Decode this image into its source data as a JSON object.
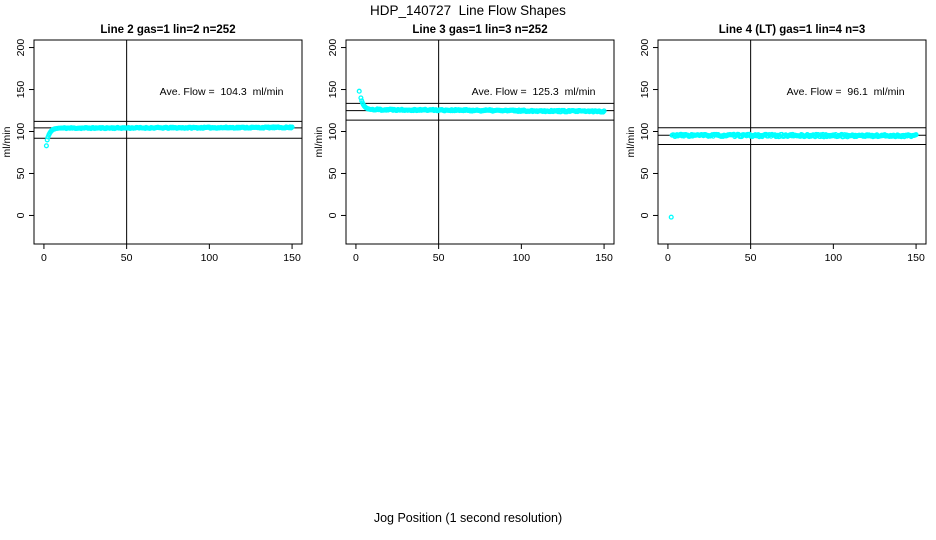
{
  "page": {
    "title": "HDP_140727  Line Flow Shapes",
    "xlabel": "Jog Position (1 second resolution)"
  },
  "colors": {
    "points": "#00ffff",
    "axis": "#000000",
    "background": "#ffffff"
  },
  "chart_data": [
    {
      "type": "scatter",
      "title": "Line 2 gas=1 lin=2 n=252",
      "annotation": "Ave. Flow =  104.3  ml/min",
      "ave_flow_ml_min": 104.3,
      "n": 252,
      "ylabel": "ml/min",
      "xlim": [
        -6,
        156
      ],
      "ylim": [
        -34,
        209
      ],
      "xticks": [
        0,
        50,
        100,
        150
      ],
      "yticks": [
        0,
        50,
        100,
        150,
        200
      ],
      "vline_x": 50,
      "hline_upper": 112,
      "hline_lower": 92,
      "hline_mid": 104.3,
      "lead_points": [
        [
          1.5,
          83
        ],
        [
          2,
          90
        ],
        [
          2.5,
          93.5
        ],
        [
          3,
          96
        ],
        [
          3.5,
          98
        ],
        [
          4,
          99.5
        ],
        [
          4.5,
          100.7
        ],
        [
          5,
          101.6
        ],
        [
          5.5,
          102.3
        ],
        [
          6,
          102.8
        ],
        [
          6.5,
          103.1
        ],
        [
          7,
          103.4
        ],
        [
          8,
          103.7
        ],
        [
          9,
          104.0
        ]
      ],
      "steady_band": {
        "x_start": 10,
        "x_end": 150,
        "points": 236,
        "level_start": 104.0,
        "level_end": 104.8,
        "noise": 0.7,
        "seed": 11
      }
    },
    {
      "type": "scatter",
      "title": "Line 3 gas=1 lin=3 n=252",
      "annotation": "Ave. Flow =  125.3  ml/min",
      "ave_flow_ml_min": 125.3,
      "n": 252,
      "ylabel": "ml/min",
      "xlim": [
        -6,
        156
      ],
      "ylim": [
        -34,
        209
      ],
      "xticks": [
        0,
        50,
        100,
        150
      ],
      "yticks": [
        0,
        50,
        100,
        150,
        200
      ],
      "vline_x": 50,
      "hline_upper": 133.5,
      "hline_lower": 113.5,
      "hline_mid": 124.8,
      "lead_points": [
        [
          2,
          148
        ],
        [
          3,
          140
        ],
        [
          3.5,
          136.5
        ],
        [
          4,
          134
        ],
        [
          4.5,
          132
        ],
        [
          5,
          130.5
        ],
        [
          5.5,
          129.3
        ],
        [
          6,
          128.4
        ],
        [
          6.5,
          127.7
        ],
        [
          7,
          127.2
        ],
        [
          7.5,
          126.9
        ],
        [
          8,
          126.6
        ],
        [
          9,
          126.2
        ]
      ],
      "steady_band": {
        "x_start": 10,
        "x_end": 150,
        "points": 238,
        "level_start": 126.2,
        "level_end": 123.9,
        "noise": 0.9,
        "seed": 22
      }
    },
    {
      "type": "scatter",
      "title": "Line 4 (LT) gas=1 lin=4 n=3",
      "annotation": "Ave. Flow =  96.1  ml/min",
      "ave_flow_ml_min": 96.1,
      "n": 3,
      "ylabel": "ml/min",
      "xlim": [
        -6,
        156
      ],
      "ylim": [
        -34,
        209
      ],
      "xticks": [
        0,
        50,
        100,
        150
      ],
      "yticks": [
        0,
        50,
        100,
        150,
        200
      ],
      "vline_x": 50,
      "hline_upper": 104.5,
      "hline_lower": 84.5,
      "hline_mid": 95.5,
      "lead_points": [
        [
          2,
          -2
        ]
      ],
      "steady_band": {
        "x_start": 2.5,
        "x_end": 150,
        "points": 250,
        "level_start": 95.4,
        "level_end": 94.9,
        "noise": 1.4,
        "seed": 33
      }
    }
  ]
}
